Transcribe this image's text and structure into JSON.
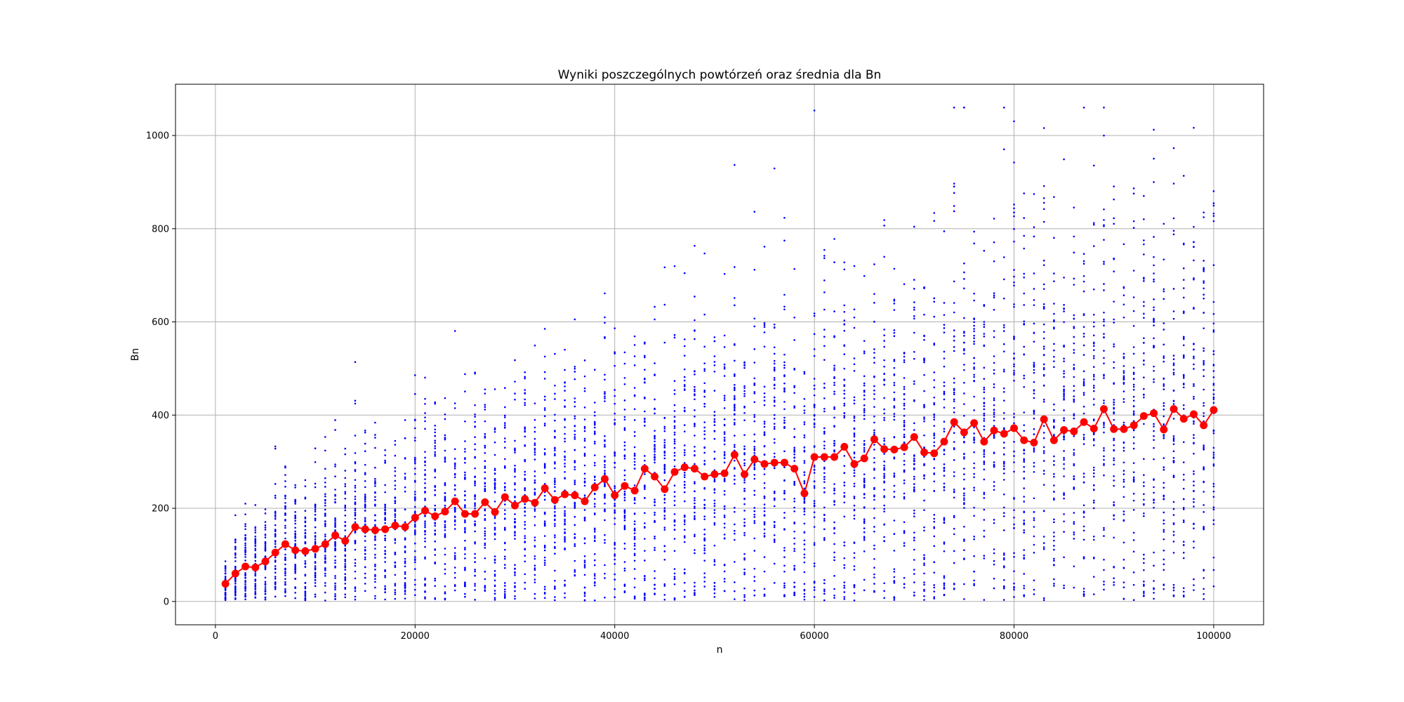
{
  "chart_data": {
    "type": "scatter",
    "title": "Wyniki poszczególnych powtórzeń oraz średnia dla Bn",
    "xlabel": "n",
    "ylabel": "Bn",
    "xlim": [
      -4000,
      105000
    ],
    "ylim": [
      -50,
      1110
    ],
    "x_ticks": [
      0,
      20000,
      40000,
      60000,
      80000,
      100000
    ],
    "y_ticks": [
      0,
      200,
      400,
      600,
      800,
      1000
    ],
    "grid": true,
    "x": [
      1000,
      2000,
      3000,
      4000,
      5000,
      6000,
      7000,
      8000,
      9000,
      10000,
      11000,
      12000,
      13000,
      14000,
      15000,
      16000,
      17000,
      18000,
      19000,
      20000,
      21000,
      22000,
      23000,
      24000,
      25000,
      26000,
      27000,
      28000,
      29000,
      30000,
      31000,
      32000,
      33000,
      34000,
      35000,
      36000,
      37000,
      38000,
      39000,
      40000,
      41000,
      42000,
      43000,
      44000,
      45000,
      46000,
      47000,
      48000,
      49000,
      50000,
      51000,
      52000,
      53000,
      54000,
      55000,
      56000,
      57000,
      58000,
      59000,
      60000,
      61000,
      62000,
      63000,
      64000,
      65000,
      66000,
      67000,
      68000,
      69000,
      70000,
      71000,
      72000,
      73000,
      74000,
      75000,
      76000,
      77000,
      78000,
      79000,
      80000,
      81000,
      82000,
      83000,
      84000,
      85000,
      86000,
      87000,
      88000,
      89000,
      90000,
      91000,
      92000,
      93000,
      94000,
      95000,
      96000,
      97000,
      98000,
      99000,
      100000
    ],
    "series": [
      {
        "type": "scatter",
        "color": "#0000ff",
        "samples_per_n": 50
      },
      {
        "type": "line",
        "color": "#ff0000",
        "marker": "circle",
        "values": [
          38,
          60,
          75,
          73,
          86,
          105,
          123,
          110,
          108,
          113,
          123,
          142,
          130,
          160,
          155,
          153,
          155,
          163,
          160,
          180,
          195,
          183,
          193,
          215,
          188,
          188,
          213,
          192,
          224,
          206,
          220,
          212,
          243,
          218,
          230,
          228,
          215,
          245,
          263,
          228,
          248,
          238,
          285,
          268,
          241,
          278,
          288,
          285,
          268,
          273,
          275,
          315,
          273,
          305,
          295,
          298,
          298,
          285,
          232,
          310,
          310,
          310,
          332,
          295,
          307,
          348,
          327,
          326,
          331,
          353,
          320,
          318,
          343,
          385,
          363,
          383,
          343,
          367,
          360,
          372,
          346,
          341,
          391,
          346,
          368,
          365,
          385,
          371,
          413,
          370,
          370,
          378,
          398,
          404,
          369,
          413,
          392,
          402,
          378,
          411
        ]
      }
    ]
  }
}
